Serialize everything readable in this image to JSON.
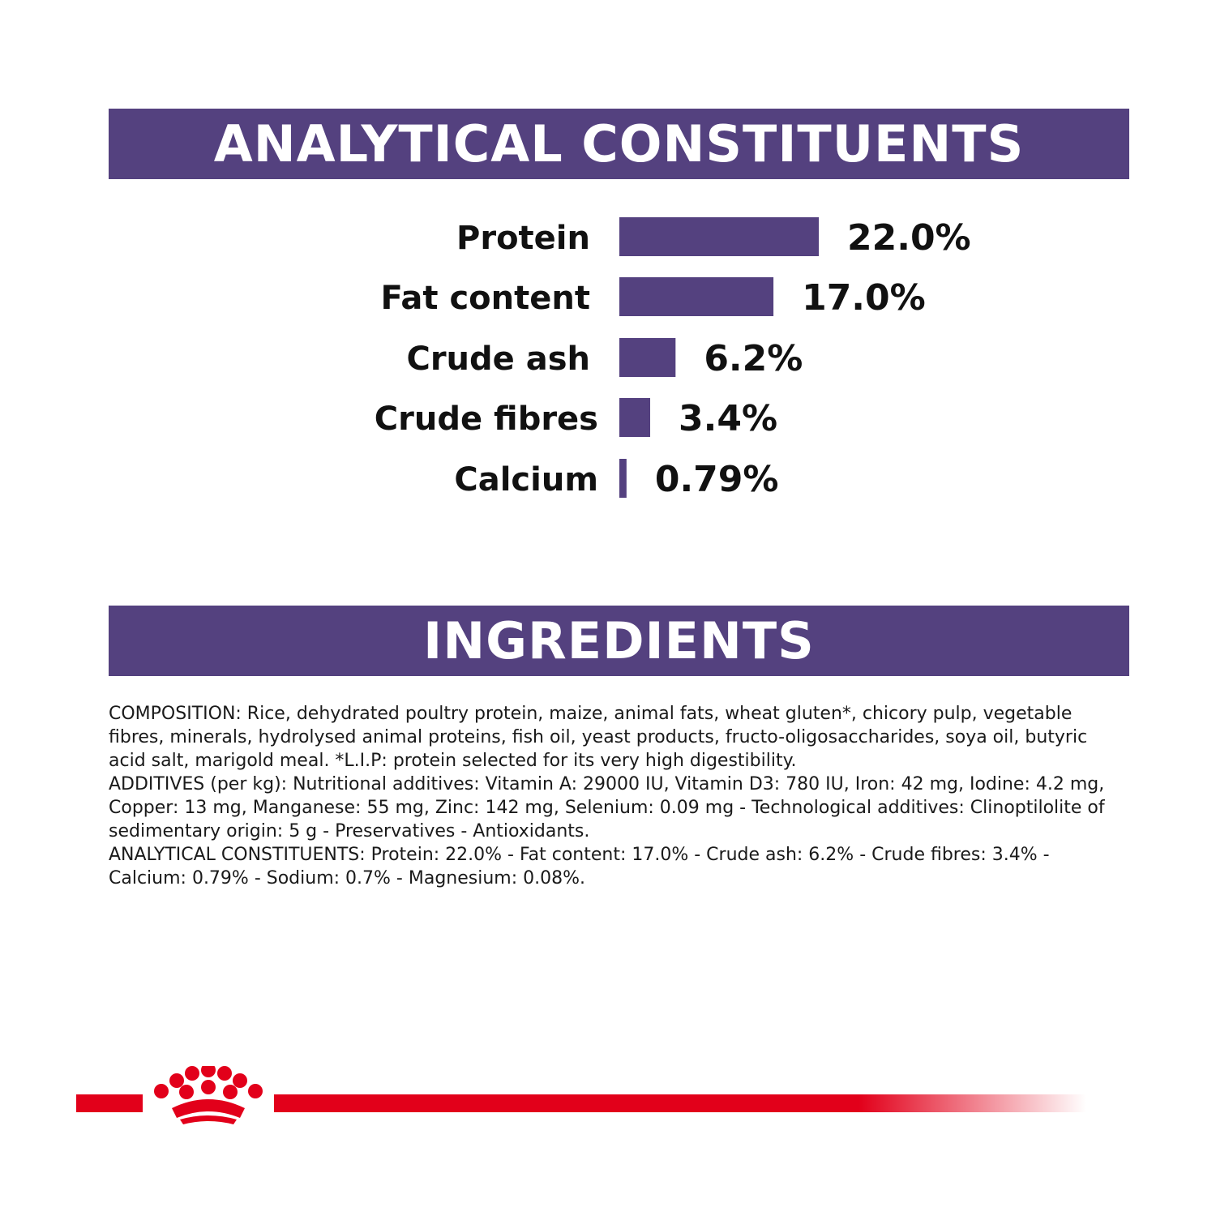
{
  "header": {
    "title": "ANALYTICAL CONSTITUENTS"
  },
  "ingredients_section": {
    "title": "INGREDIENTS",
    "paragraphs": [
      "COMPOSITION: Rice, dehydrated poultry protein, maize, animal fats, wheat gluten*, chicory pulp, vegetable fibres, minerals, hydrolysed animal proteins, fish oil, yeast products, fructo-oligosaccharides, soya oil, butyric acid salt, marigold meal. *L.I.P: protein selected for its very high digestibility.",
      "ADDITIVES (per kg): Nutritional additives: Vitamin A: 29000 IU, Vitamin D3: 780 IU, Iron: 42 mg, Iodine: 4.2 mg, Copper: 13 mg, Manganese: 55 mg, Zinc: 142 mg, Selenium: 0.09 mg - Technological additives: Clinoptilolite of sedimentary origin: 5 g - Preservatives - Antioxidants.",
      "ANALYTICAL CONSTITUENTS: Protein: 22.0% - Fat content: 17.0% - Crude ash: 6.2% - Crude fibres: 3.4% - Calcium: 0.79% - Sodium: 0.7% - Magnesium: 0.08%."
    ]
  },
  "chart_data": {
    "type": "bar",
    "orientation": "horizontal",
    "categories": [
      "Protein",
      "Fat content",
      "Crude ash",
      "Crude fibres",
      "Calcium"
    ],
    "values": [
      22.0,
      17.0,
      6.2,
      3.4,
      0.79
    ],
    "value_labels": [
      "22.0%",
      "17.0%",
      "6.2%",
      "3.4%",
      "0.79%"
    ],
    "bar_color": "#54417f",
    "grid": false,
    "legend": "none"
  },
  "colors": {
    "accent": "#54417f",
    "brand_red": "#e2001a"
  },
  "logo": {
    "icon": "crown-paw-icon"
  }
}
